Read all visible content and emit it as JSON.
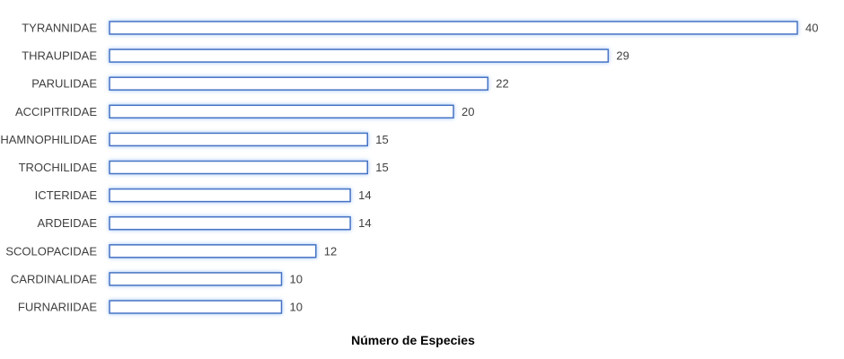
{
  "chart_data": {
    "type": "bar",
    "orientation": "horizontal",
    "categories": [
      "TYRANNIDAE",
      "THRAUPIDAE",
      "PARULIDAE",
      "ACCIPITRIDAE",
      "THAMNOPHILIDAE",
      "TROCHILIDAE",
      "ICTERIDAE",
      "ARDEIDAE",
      "SCOLOPACIDAE",
      "CARDINALIDAE",
      "FURNARIIDAE"
    ],
    "values": [
      40,
      29,
      22,
      20,
      15,
      15,
      14,
      14,
      12,
      10,
      10
    ],
    "title": "",
    "xlabel": "Número de Especies",
    "ylabel": "",
    "xlim": [
      0,
      40
    ],
    "grid": false,
    "legend": "none",
    "colors": {
      "bar_fill": "#ffffff",
      "bar_stroke": "#4472c4",
      "bar_glow": "#9dc3f7"
    }
  }
}
